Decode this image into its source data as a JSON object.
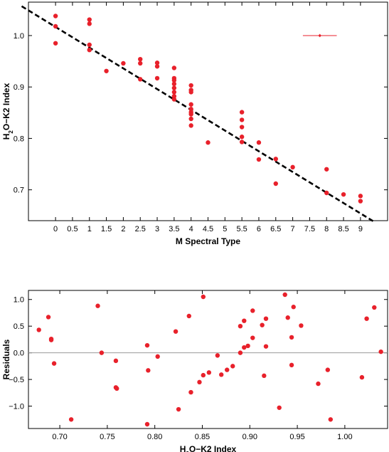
{
  "colors": {
    "points": "#e8212b",
    "fit_line": "#000000",
    "frame": "#000000",
    "zero_line": "#9a9a9a"
  },
  "chart_data": [
    {
      "type": "scatter",
      "xlabel": "M Spectral Type",
      "ylabel_parts": [
        "H",
        "2",
        "O−K2 Index"
      ],
      "xlim": [
        -0.8,
        9.8
      ],
      "ylim": [
        0.64,
        1.065
      ],
      "x_ticks": [
        0,
        0.5,
        1,
        1.5,
        2,
        2.5,
        3,
        3.5,
        4,
        4.5,
        5,
        5.5,
        6,
        6.5,
        7,
        7.5,
        8,
        8.5,
        9
      ],
      "x_tick_labels": [
        "0",
        "0.5",
        "1",
        "1.5",
        "2",
        "2.5",
        "3",
        "3.5",
        "4",
        "4.5",
        "5",
        "5.5",
        "6",
        "6.5",
        "7",
        "7.5",
        "8",
        "8.5",
        "9"
      ],
      "y_ticks": [
        0.7,
        0.8,
        0.9,
        1.0
      ],
      "y_tick_labels": [
        "0.7",
        "0.8",
        "0.9",
        "1.0"
      ],
      "fit_line": {
        "x": [
          -1.0,
          9.4
        ],
        "y": [
          1.057,
          0.638
        ]
      },
      "error_bar": {
        "x": 7.8,
        "y": 1.0,
        "x_err": 0.5,
        "y_err": 0.003
      },
      "points": [
        [
          0,
          1.038
        ],
        [
          0,
          1.018
        ],
        [
          0,
          0.985
        ],
        [
          1,
          1.031
        ],
        [
          1,
          1.023
        ],
        [
          1,
          0.982
        ],
        [
          1,
          0.972
        ],
        [
          1.5,
          0.931
        ],
        [
          2,
          0.946
        ],
        [
          2.5,
          0.954
        ],
        [
          2.5,
          0.946
        ],
        [
          2.5,
          0.915
        ],
        [
          3,
          0.947
        ],
        [
          3,
          0.94
        ],
        [
          3,
          0.917
        ],
        [
          3.5,
          0.937
        ],
        [
          3.5,
          0.917
        ],
        [
          3.5,
          0.913
        ],
        [
          3.5,
          0.906
        ],
        [
          3.5,
          0.898
        ],
        [
          3.5,
          0.89
        ],
        [
          3.5,
          0.882
        ],
        [
          3.5,
          0.876
        ],
        [
          4,
          0.903
        ],
        [
          4,
          0.894
        ],
        [
          4,
          0.89
        ],
        [
          4,
          0.866
        ],
        [
          4,
          0.857
        ],
        [
          4,
          0.851
        ],
        [
          4,
          0.847
        ],
        [
          4,
          0.838
        ],
        [
          4,
          0.825
        ],
        [
          4.5,
          0.792
        ],
        [
          5.5,
          0.851
        ],
        [
          5.5,
          0.836
        ],
        [
          5.5,
          0.822
        ],
        [
          5.5,
          0.803
        ],
        [
          5.5,
          0.793
        ],
        [
          6,
          0.792
        ],
        [
          6,
          0.759
        ],
        [
          6.5,
          0.76
        ],
        [
          6.5,
          0.712
        ],
        [
          7,
          0.744
        ],
        [
          8,
          0.74
        ],
        [
          8,
          0.694
        ],
        [
          8.5,
          0.691
        ],
        [
          9,
          0.688
        ],
        [
          9,
          0.678
        ]
      ]
    },
    {
      "type": "scatter",
      "xlabel_parts": [
        "H",
        "2",
        "O−K2 Index"
      ],
      "ylabel": "Residuals",
      "xlim": [
        0.667,
        1.045
      ],
      "ylim": [
        -1.42,
        1.17
      ],
      "x_ticks": [
        0.7,
        0.75,
        0.8,
        0.85,
        0.9,
        0.95,
        1.0
      ],
      "x_tick_labels": [
        "0.70",
        "0.75",
        "0.80",
        "0.85",
        "0.90",
        "0.95",
        "1.00"
      ],
      "y_ticks": [
        -1.0,
        -0.5,
        0.0,
        0.5,
        1.0
      ],
      "y_tick_labels": [
        "−1.0",
        "−0.5",
        "0.0",
        "0.5",
        "1.0"
      ],
      "zero_line": true,
      "points": [
        [
          0.678,
          0.43
        ],
        [
          0.688,
          0.67
        ],
        [
          0.691,
          0.24
        ],
        [
          0.691,
          0.26
        ],
        [
          0.694,
          -0.2
        ],
        [
          0.712,
          -1.25
        ],
        [
          0.74,
          0.88
        ],
        [
          0.744,
          0.0
        ],
        [
          0.759,
          -0.15
        ],
        [
          0.759,
          -0.65
        ],
        [
          0.76,
          -0.67
        ],
        [
          0.792,
          0.14
        ],
        [
          0.793,
          -0.33
        ],
        [
          0.792,
          -1.34
        ],
        [
          0.803,
          -0.07
        ],
        [
          0.822,
          0.4
        ],
        [
          0.825,
          -1.06
        ],
        [
          0.836,
          0.69
        ],
        [
          0.838,
          -0.74
        ],
        [
          0.847,
          -0.55
        ],
        [
          0.851,
          1.05
        ],
        [
          0.851,
          -0.42
        ],
        [
          0.857,
          -0.37
        ],
        [
          0.866,
          -0.05
        ],
        [
          0.87,
          -0.41
        ],
        [
          0.876,
          -0.32
        ],
        [
          0.882,
          -0.25
        ],
        [
          0.89,
          0.0
        ],
        [
          0.89,
          0.5
        ],
        [
          0.894,
          0.1
        ],
        [
          0.894,
          0.6
        ],
        [
          0.898,
          0.13
        ],
        [
          0.903,
          0.79
        ],
        [
          0.903,
          0.28
        ],
        [
          0.913,
          0.52
        ],
        [
          0.915,
          -0.43
        ],
        [
          0.917,
          0.64
        ],
        [
          0.917,
          0.12
        ],
        [
          0.931,
          -1.03
        ],
        [
          0.937,
          1.09
        ],
        [
          0.94,
          0.66
        ],
        [
          0.944,
          -0.23
        ],
        [
          0.944,
          0.29
        ],
        [
          0.946,
          0.86
        ],
        [
          0.954,
          0.51
        ],
        [
          0.972,
          -0.58
        ],
        [
          0.982,
          -0.32
        ],
        [
          0.985,
          -1.25
        ],
        [
          1.018,
          -0.46
        ],
        [
          1.023,
          0.64
        ],
        [
          1.031,
          0.85
        ],
        [
          1.038,
          0.02
        ]
      ]
    }
  ]
}
